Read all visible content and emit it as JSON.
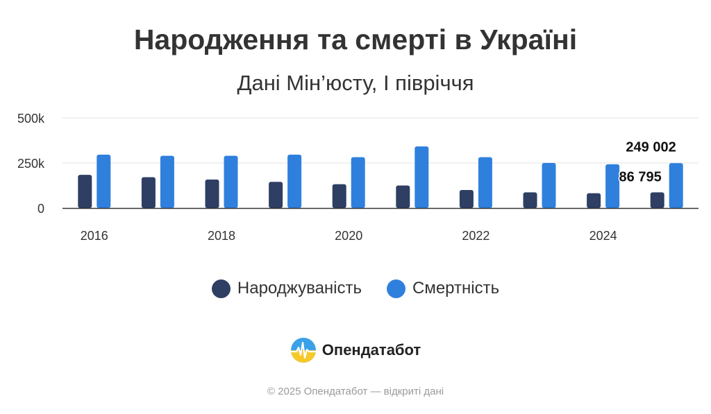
{
  "chart_data": {
    "type": "bar",
    "title": "Народження та смерті в Україні",
    "subtitle": "Дані Мін’юсту, І півріччя",
    "x": [
      2016,
      2017,
      2018,
      2019,
      2020,
      2021,
      2022,
      2023,
      2024,
      2025
    ],
    "x_tick_labels": [
      "2016",
      "2018",
      "2020",
      "2022",
      "2024"
    ],
    "y_tick_labels": [
      "0",
      "250k",
      "500k"
    ],
    "ylim": [
      0,
      500000
    ],
    "grid": true,
    "legend_position": "bottom",
    "series": [
      {
        "name": "Народжуваність",
        "color": "#2e3f63",
        "values": [
          184000,
          171000,
          158000,
          145000,
          132000,
          125000,
          100000,
          87000,
          82000,
          86795
        ]
      },
      {
        "name": "Смертність",
        "color": "#2f80dd",
        "values": [
          296000,
          290000,
          290000,
          296000,
          282000,
          342000,
          282000,
          250000,
          243000,
          249002
        ]
      }
    ],
    "annotations": [
      {
        "series": "Смертність",
        "x": 2025,
        "label": "249 002"
      },
      {
        "series": "Народжуваність",
        "x": 2025,
        "label": "86 795"
      }
    ]
  },
  "brand": {
    "name": "Опендатабот",
    "icon": "opendatabot-logo-icon"
  },
  "footer": "© 2025 Опендатабот — відкриті дані"
}
